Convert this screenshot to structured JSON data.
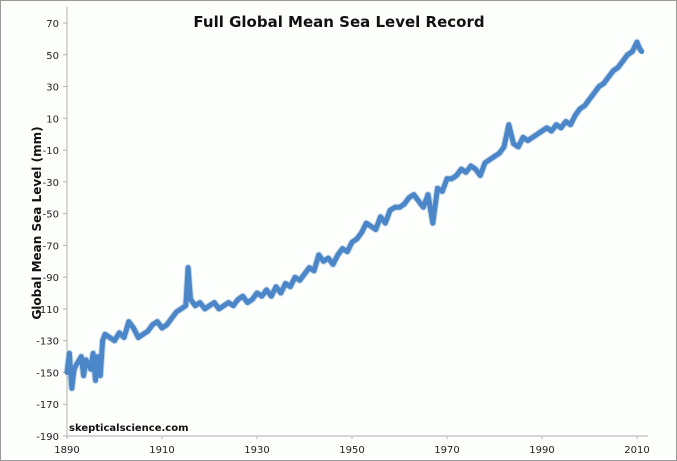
{
  "chart_data": {
    "type": "line",
    "title": "Full Global Mean Sea Level Record",
    "xlabel": "",
    "ylabel": "Global Mean Sea Level (mm)",
    "credit": "skepticalscience.com",
    "xlim": [
      1890,
      2012
    ],
    "ylim": [
      -190,
      80
    ],
    "xticks": [
      1890,
      1910,
      1930,
      1950,
      1970,
      1990,
      2010
    ],
    "yticks": [
      70,
      50,
      30,
      10,
      -10,
      -30,
      -50,
      -70,
      -90,
      -110,
      -130,
      -150,
      -170,
      -190
    ],
    "grid": false,
    "line_color": "#4a86c8",
    "series": [
      {
        "name": "Global Mean Sea Level",
        "x": [
          1890,
          1890.5,
          1891,
          1891.5,
          1892,
          1893,
          1893.5,
          1894,
          1895,
          1895.5,
          1896,
          1896.5,
          1897,
          1897.5,
          1898,
          1899,
          1900,
          1901,
          1902,
          1903,
          1904,
          1905,
          1906,
          1907,
          1908,
          1909,
          1910,
          1911,
          1912,
          1913,
          1914,
          1915,
          1915.5,
          1916,
          1917,
          1918,
          1919,
          1920,
          1921,
          1922,
          1923,
          1924,
          1925,
          1926,
          1927,
          1928,
          1929,
          1930,
          1931,
          1932,
          1933,
          1934,
          1935,
          1936,
          1937,
          1938,
          1939,
          1940,
          1941,
          1942,
          1943,
          1944,
          1945,
          1946,
          1947,
          1948,
          1949,
          1950,
          1951,
          1952,
          1953,
          1954,
          1955,
          1956,
          1957,
          1958,
          1959,
          1960,
          1961,
          1962,
          1963,
          1964,
          1965,
          1966,
          1967,
          1968,
          1969,
          1970,
          1971,
          1972,
          1973,
          1974,
          1975,
          1976,
          1977,
          1978,
          1979,
          1980,
          1981,
          1982,
          1983,
          1984,
          1985,
          1986,
          1987,
          1988,
          1989,
          1990,
          1991,
          1992,
          1993,
          1994,
          1995,
          1996,
          1997,
          1998,
          1999,
          2000,
          2001,
          2002,
          2003,
          2004,
          2005,
          2006,
          2007,
          2008,
          2009,
          2010,
          2010.5,
          2011
        ],
        "y": [
          -150,
          -138,
          -160,
          -148,
          -145,
          -140,
          -152,
          -142,
          -148,
          -138,
          -155,
          -140,
          -152,
          -130,
          -126,
          -128,
          -130,
          -125,
          -128,
          -118,
          -122,
          -128,
          -126,
          -124,
          -120,
          -118,
          -122,
          -120,
          -116,
          -112,
          -110,
          -108,
          -84,
          -104,
          -108,
          -106,
          -110,
          -108,
          -106,
          -110,
          -108,
          -106,
          -108,
          -104,
          -102,
          -106,
          -104,
          -100,
          -102,
          -98,
          -102,
          -96,
          -100,
          -94,
          -96,
          -90,
          -92,
          -88,
          -84,
          -86,
          -76,
          -80,
          -78,
          -82,
          -76,
          -72,
          -74,
          -68,
          -66,
          -62,
          -56,
          -58,
          -60,
          -52,
          -56,
          -48,
          -46,
          -46,
          -44,
          -40,
          -38,
          -42,
          -46,
          -38,
          -56,
          -34,
          -36,
          -28,
          -28,
          -26,
          -22,
          -24,
          -20,
          -22,
          -26,
          -18,
          -16,
          -14,
          -12,
          -8,
          6,
          -6,
          -8,
          -2,
          -4,
          -2,
          0,
          2,
          4,
          2,
          6,
          4,
          8,
          6,
          12,
          16,
          18,
          22,
          26,
          30,
          32,
          36,
          40,
          42,
          46,
          50,
          52,
          58,
          54,
          52
        ]
      }
    ]
  }
}
